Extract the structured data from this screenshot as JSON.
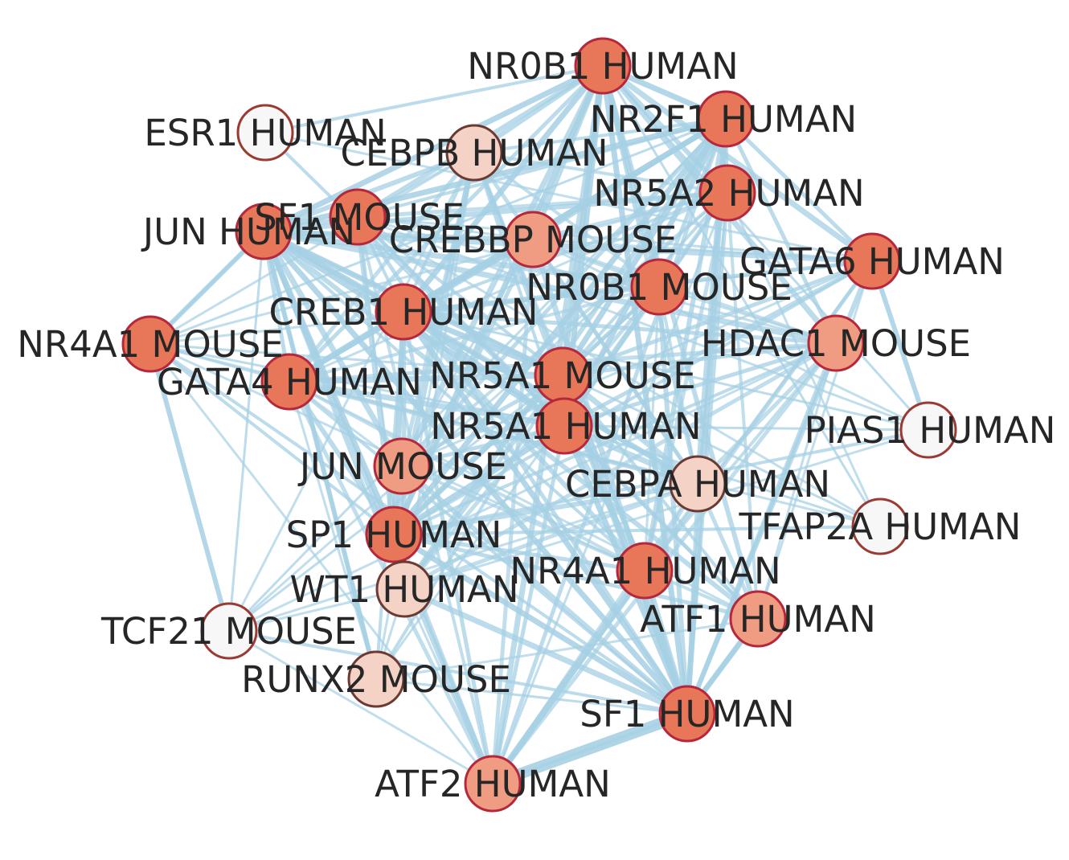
{
  "colors": {
    "edge": "#a6d0e4",
    "label": "#262626",
    "high": "#e8775a",
    "mid": "#ef9c82",
    "low": "#f4d3c6",
    "none": "#f7f7f7"
  },
  "nodes": [
    {
      "id": "NR0B1_HUMAN",
      "label": "NR0B1 HUMAN",
      "level": "high"
    },
    {
      "id": "NR2F1_HUMAN",
      "label": "NR2F1 HUMAN",
      "level": "high"
    },
    {
      "id": "ESR1_HUMAN",
      "label": "ESR1 HUMAN",
      "level": "none"
    },
    {
      "id": "CEBPB_HUMAN",
      "label": "CEBPB HUMAN",
      "level": "low"
    },
    {
      "id": "NR5A2_HUMAN",
      "label": "NR5A2 HUMAN",
      "level": "high"
    },
    {
      "id": "SF1_MOUSE",
      "label": "SF1 MOUSE",
      "level": "high"
    },
    {
      "id": "JUN_HUMAN",
      "label": "JUN HUMAN",
      "level": "high"
    },
    {
      "id": "CREBBP_MOUSE",
      "label": "CREBBP MOUSE",
      "level": "mid"
    },
    {
      "id": "GATA6_HUMAN",
      "label": "GATA6 HUMAN",
      "level": "high"
    },
    {
      "id": "NR0B1_MOUSE",
      "label": "NR0B1 MOUSE",
      "level": "high"
    },
    {
      "id": "CREB1_HUMAN",
      "label": "CREB1 HUMAN",
      "level": "high"
    },
    {
      "id": "NR4A1_MOUSE",
      "label": "NR4A1 MOUSE",
      "level": "high"
    },
    {
      "id": "HDAC1_MOUSE",
      "label": "HDAC1 MOUSE",
      "level": "mid"
    },
    {
      "id": "GATA4_HUMAN",
      "label": "GATA4 HUMAN",
      "level": "high"
    },
    {
      "id": "NR5A1_MOUSE",
      "label": "NR5A1 MOUSE",
      "level": "high"
    },
    {
      "id": "NR5A1_HUMAN",
      "label": "NR5A1 HUMAN",
      "level": "high"
    },
    {
      "id": "PIAS1_HUMAN",
      "label": "PIAS1 HUMAN",
      "level": "none"
    },
    {
      "id": "JUN_MOUSE",
      "label": "JUN MOUSE",
      "level": "mid"
    },
    {
      "id": "CEBPA_HUMAN",
      "label": "CEBPA HUMAN",
      "level": "low"
    },
    {
      "id": "TFAP2A_HUMAN",
      "label": "TFAP2A HUMAN",
      "level": "none"
    },
    {
      "id": "SP1_HUMAN",
      "label": "SP1 HUMAN",
      "level": "high"
    },
    {
      "id": "NR4A1_HUMAN",
      "label": "NR4A1 HUMAN",
      "level": "high"
    },
    {
      "id": "WT1_HUMAN",
      "label": "WT1 HUMAN",
      "level": "low"
    },
    {
      "id": "ATF1_HUMAN",
      "label": "ATF1 HUMAN",
      "level": "mid"
    },
    {
      "id": "TCF21_MOUSE",
      "label": "TCF21 MOUSE",
      "level": "none"
    },
    {
      "id": "RUNX2_MOUSE",
      "label": "RUNX2 MOUSE",
      "level": "low"
    },
    {
      "id": "SF1_HUMAN",
      "label": "SF1 HUMAN",
      "level": "high"
    },
    {
      "id": "ATF2_HUMAN",
      "label": "ATF2 HUMAN",
      "level": "mid"
    }
  ]
}
